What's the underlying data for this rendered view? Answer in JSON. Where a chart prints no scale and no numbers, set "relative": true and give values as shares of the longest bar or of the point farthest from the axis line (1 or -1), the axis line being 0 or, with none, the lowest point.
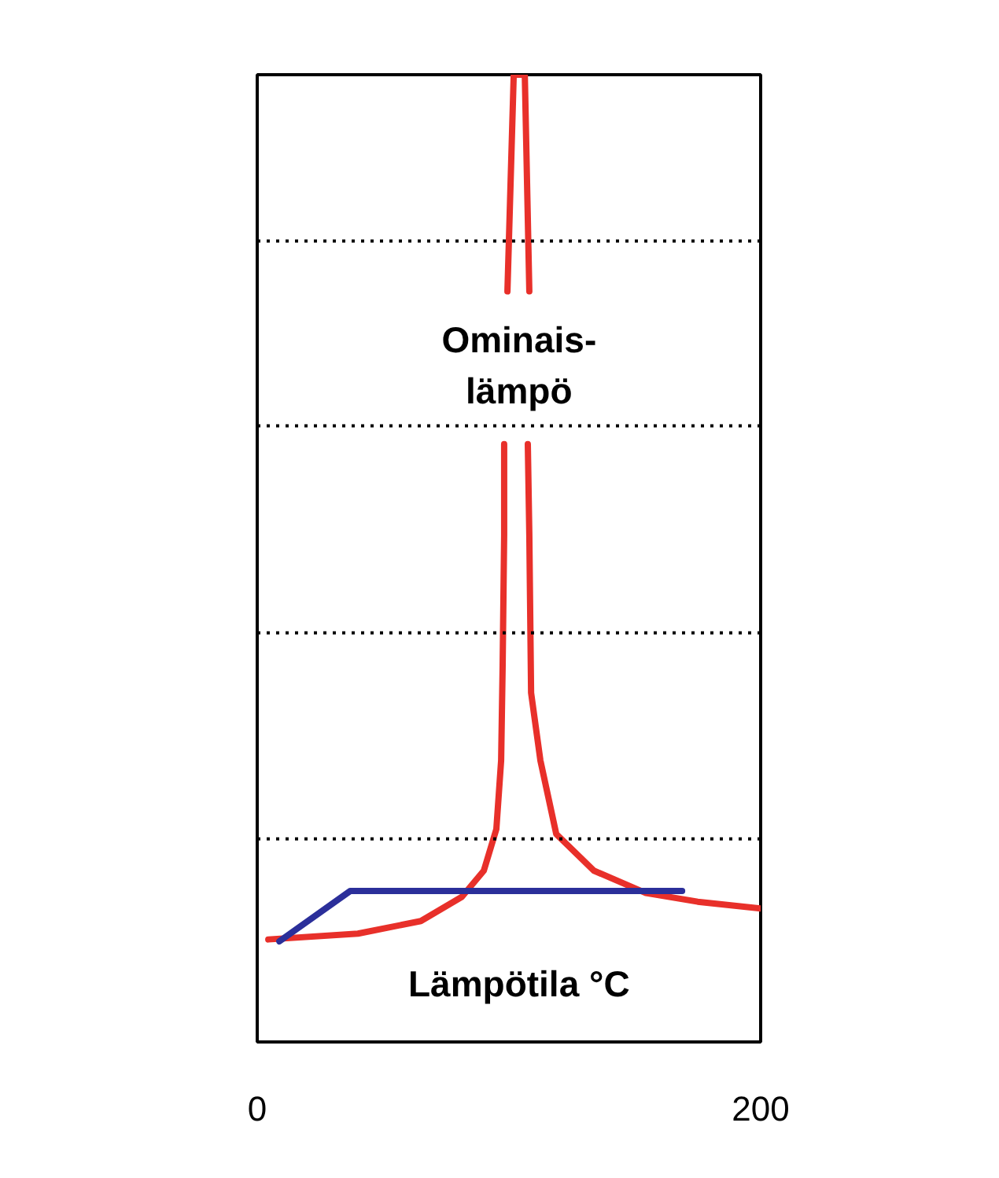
{
  "chart_data": {
    "type": "line",
    "xlabel": "Lämpötila °C",
    "relative": true,
    "xlim": [
      0,
      200
    ],
    "xticks": [
      0,
      200
    ],
    "grid": false,
    "legend": false,
    "series": [
      {
        "name": "Ominais-\nlämpö",
        "color": "#e8302a",
        "x": [
          4.4,
          40,
          65,
          81.3,
          90,
          95,
          96.9,
          97.5,
          98.1,
          98.1,
          null,
          99.4,
          101.9,
          106.3,
          108.1,
          null,
          107.5,
          108.1,
          108.8,
          112.5,
          118.8,
          133.8,
          154.4,
          175,
          200
        ],
        "values": [
          0.106,
          0.112,
          0.125,
          0.15,
          0.177,
          0.22,
          0.291,
          0.389,
          0.524,
          0.618,
          null,
          0.776,
          1.0,
          1.0,
          0.776,
          null,
          0.618,
          0.524,
          0.361,
          0.291,
          0.215,
          0.177,
          0.154,
          0.145,
          0.138
        ]
      },
      {
        "color": "#2b2f9a",
        "x": [
          8.8,
          36.9,
          168.8
        ],
        "values": [
          0.104,
          0.156,
          0.156
        ]
      }
    ],
    "ref_lines": [
      {
        "axis": "y",
        "value": 0.828,
        "color": "#000000",
        "line_style": "dotted"
      },
      {
        "axis": "y",
        "value": 0.637,
        "color": "#000000",
        "line_style": "dotted"
      },
      {
        "axis": "y",
        "value": 0.423,
        "color": "#000000",
        "line_style": "dotted"
      },
      {
        "axis": "y",
        "value": 0.21,
        "color": "#000000",
        "line_style": "dotted"
      }
    ]
  }
}
